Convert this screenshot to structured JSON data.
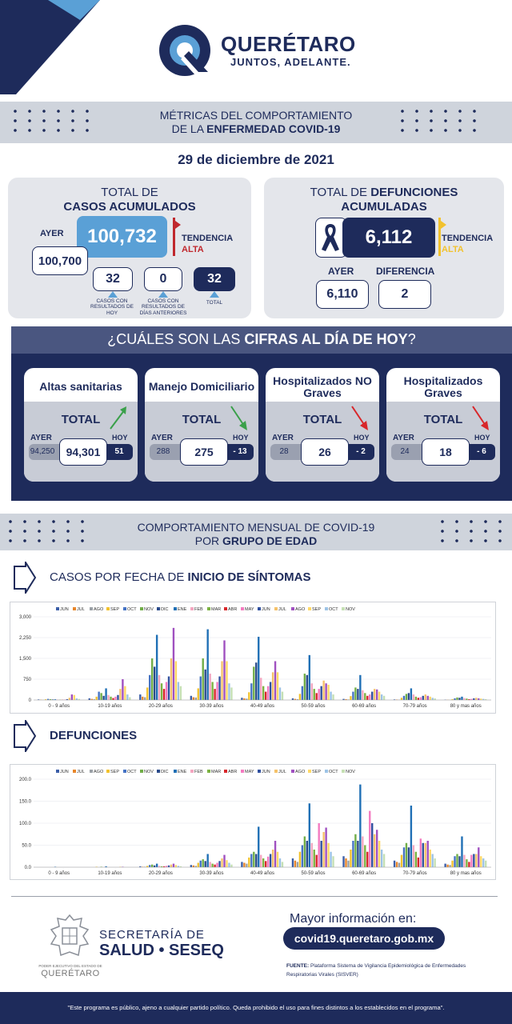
{
  "brand": {
    "name": "QUERÉTARO",
    "slogan": "JUNTOS, ADELANTE."
  },
  "header": {
    "line1": "MÉTRICAS DEL COMPORTAMIENTO",
    "line2_pre": "DE LA ",
    "line2_bold": "ENFERMEDAD COVID-19"
  },
  "date": "29 de diciembre de 2021",
  "casos": {
    "title1": "TOTAL DE",
    "title2": "CASOS ACUMULADOS",
    "ayer_label": "AYER",
    "ayer_value": "100,700",
    "total": "100,732",
    "tendencia_label": "TENDENCIA",
    "tendencia_value": "ALTA",
    "hoy_value": "32",
    "hoy_label": "CASOS CON RESULTADOS DE HOY",
    "anteriores_value": "0",
    "anteriores_label": "CASOS CON RESULTADOS DE DÍAS ANTERIORES",
    "total_value": "32",
    "total_label": "TOTAL"
  },
  "defunciones": {
    "title_pre": "TOTAL DE ",
    "title_bold": "DEFUNCIONES",
    "title2": "ACUMULADAS",
    "total": "6,112",
    "tendencia_label": "TENDENCIA",
    "tendencia_value": "ALTA",
    "ayer_label": "AYER",
    "ayer_value": "6,110",
    "diferencia_label": "DIFERENCIA",
    "diferencia_value": "2"
  },
  "cifras": {
    "title_pre": "¿CUÁLES SON LAS ",
    "title_bold": "CIFRAS AL DÍA DE HOY",
    "title_post": "?",
    "cards": [
      {
        "title": "Altas sanitarias",
        "total_label": "TOTAL",
        "ayer_label": "AYER",
        "hoy_label": "HOY",
        "ayer": "94,250",
        "total": "94,301",
        "hoy": "51",
        "trend": "up"
      },
      {
        "title": "Manejo Domiciliario",
        "total_label": "TOTAL",
        "ayer_label": "AYER",
        "hoy_label": "HOY",
        "ayer": "288",
        "total": "275",
        "hoy": "- 13",
        "trend": "down-green"
      },
      {
        "title": "Hospitalizados NO Graves",
        "total_label": "TOTAL",
        "ayer_label": "AYER",
        "hoy_label": "HOY",
        "ayer": "28",
        "total": "26",
        "hoy": "- 2",
        "trend": "down-red"
      },
      {
        "title": "Hospitalizados Graves",
        "total_label": "TOTAL",
        "ayer_label": "AYER",
        "hoy_label": "HOY",
        "ayer": "24",
        "total": "18",
        "hoy": "- 6",
        "trend": "down-red"
      }
    ]
  },
  "mensual": {
    "line1": "COMPORTAMIENTO MENSUAL DE COVID-19",
    "line2_pre": "POR ",
    "line2_bold": "GRUPO DE EDAD"
  },
  "chart_casos_title": {
    "pre": "CASOS POR FECHA DE ",
    "bold": "INICIO DE SÍNTOMAS"
  },
  "chart_def_title": {
    "bold": "DEFUNCIONES"
  },
  "chart_data": [
    {
      "type": "bar",
      "title": "CASOS POR FECHA DE INICIO DE SÍNTOMAS",
      "categories": [
        "0 - 9 años",
        "10-19 años",
        "20-29 años",
        "30-39 años",
        "40-49 años",
        "50-59 años",
        "60-69 años",
        "70-79 años",
        "80 y mas años"
      ],
      "series_names": [
        "JUN",
        "JUL",
        "AGO",
        "SEP",
        "OCT",
        "NOV",
        "DIC",
        "ENE",
        "FEB",
        "MAR",
        "ABR",
        "MAY",
        "JUN",
        "JUL",
        "AGO",
        "SEP",
        "OCT",
        "NOV"
      ],
      "colors": [
        "#3b5ea8",
        "#e8862a",
        "#9aa0a6",
        "#f2c22e",
        "#4472c4",
        "#70ad47",
        "#2a4a8a",
        "#1f6fb5",
        "#f4a6c0",
        "#7cb342",
        "#d8262a",
        "#f37ac0",
        "#3050a0",
        "#f5c26b",
        "#a050c0",
        "#ffd966",
        "#9dc3e6",
        "#c5e0b4"
      ],
      "values": [
        [
          20,
          10,
          5,
          25,
          40,
          30,
          20,
          25,
          15,
          10,
          8,
          12,
          30,
          80,
          200,
          180,
          60,
          40
        ],
        [
          60,
          40,
          30,
          120,
          300,
          250,
          150,
          420,
          180,
          120,
          70,
          120,
          180,
          400,
          750,
          500,
          200,
          100
        ],
        [
          200,
          120,
          100,
          450,
          900,
          1500,
          1200,
          2350,
          900,
          600,
          400,
          650,
          850,
          1500,
          2600,
          1400,
          650,
          500
        ],
        [
          150,
          100,
          90,
          420,
          850,
          1500,
          1100,
          2550,
          950,
          650,
          400,
          650,
          850,
          1400,
          2150,
          1400,
          600,
          450
        ],
        [
          80,
          60,
          50,
          280,
          600,
          1200,
          1350,
          2280,
          800,
          500,
          300,
          500,
          650,
          1000,
          1400,
          1000,
          450,
          300
        ],
        [
          60,
          40,
          30,
          220,
          500,
          950,
          900,
          1620,
          600,
          400,
          250,
          400,
          500,
          700,
          600,
          550,
          300,
          200
        ],
        [
          40,
          30,
          20,
          140,
          300,
          450,
          400,
          900,
          350,
          250,
          150,
          200,
          300,
          400,
          380,
          300,
          200,
          150
        ],
        [
          20,
          15,
          10,
          80,
          150,
          220,
          250,
          420,
          200,
          120,
          80,
          100,
          150,
          200,
          150,
          120,
          80,
          60
        ],
        [
          10,
          8,
          6,
          30,
          60,
          90,
          80,
          120,
          70,
          50,
          30,
          40,
          60,
          80,
          60,
          50,
          40,
          30
        ]
      ],
      "y_ticks": [
        "0",
        "750",
        "1,500",
        "2,250",
        "3,000"
      ],
      "ylim": [
        0,
        3000
      ]
    },
    {
      "type": "bar",
      "title": "DEFUNCIONES",
      "categories": [
        "0 - 9 años",
        "10-19 años",
        "20-29 años",
        "30-39 años",
        "40-49 años",
        "50-59 años",
        "60-69 años",
        "70-79 años",
        "80 y mas años"
      ],
      "series_names": [
        "JUN",
        "JUL",
        "AGO",
        "SEP",
        "OCT",
        "NOV",
        "DIC",
        "ENE",
        "FEB",
        "MAR",
        "ABR",
        "MAY",
        "JUN",
        "JUL",
        "AGO",
        "SEP",
        "OCT",
        "NOV"
      ],
      "colors": [
        "#3b5ea8",
        "#e8862a",
        "#9aa0a6",
        "#f2c22e",
        "#4472c4",
        "#70ad47",
        "#2a4a8a",
        "#1f6fb5",
        "#f4a6c0",
        "#7cb342",
        "#d8262a",
        "#f37ac0",
        "#3050a0",
        "#f5c26b",
        "#a050c0",
        "#ffd966",
        "#9dc3e6",
        "#c5e0b4"
      ],
      "values": [
        [
          0,
          0,
          0,
          0,
          0,
          0,
          0,
          1,
          0,
          0,
          0,
          0,
          0,
          0,
          0,
          0,
          0,
          0
        ],
        [
          0,
          0,
          0,
          1,
          0,
          1,
          0,
          2,
          0,
          0,
          0,
          0,
          0,
          1,
          1,
          0,
          0,
          0
        ],
        [
          2,
          1,
          1,
          3,
          5,
          6,
          4,
          8,
          3,
          2,
          2,
          3,
          4,
          6,
          8,
          5,
          3,
          2
        ],
        [
          5,
          4,
          3,
          10,
          15,
          18,
          14,
          30,
          12,
          8,
          6,
          10,
          14,
          20,
          28,
          16,
          10,
          6
        ],
        [
          12,
          10,
          8,
          22,
          30,
          35,
          30,
          92,
          28,
          20,
          14,
          24,
          30,
          40,
          60,
          35,
          20,
          12
        ],
        [
          20,
          15,
          12,
          35,
          50,
          70,
          60,
          145,
          55,
          40,
          28,
          100,
          60,
          80,
          90,
          55,
          35,
          25
        ],
        [
          25,
          20,
          15,
          40,
          60,
          75,
          60,
          188,
          70,
          50,
          35,
          128,
          100,
          75,
          85,
          60,
          40,
          30
        ],
        [
          15,
          12,
          10,
          28,
          45,
          55,
          45,
          140,
          50,
          35,
          22,
          65,
          55,
          55,
          60,
          40,
          30,
          20
        ],
        [
          8,
          6,
          5,
          15,
          25,
          30,
          25,
          70,
          28,
          18,
          12,
          28,
          30,
          30,
          45,
          25,
          20,
          15
        ]
      ],
      "y_ticks": [
        "0.0",
        "50.0",
        "100.0",
        "150.0",
        "200.0"
      ],
      "ylim": [
        0,
        200
      ]
    }
  ],
  "footer": {
    "secretaria1": "SECRETARÍA DE",
    "secretaria2": "SALUD • SESEQ",
    "gov_small": "PODER EJECUTIVO DEL ESTADO DE",
    "gov_name": "QUERÉTARO",
    "mayor_info": "Mayor información en:",
    "url": "covid19.queretaro.gob.mx",
    "fuente_label": "FUENTE:",
    "fuente_text": "Plataforma Sistema de Vigilancia Epidemiológica de Enfermedades Respiratorias Virales (SISVER)",
    "disclaimer": "\"Este programa es público, ajeno a cualquier partido político. Queda prohibido el uso para fines distintos a los establecidos en el programa\"."
  },
  "colors": {
    "navy": "#1e2b5b",
    "panel": "#e4e6eb",
    "blue": "#5aa0d6",
    "red": "#c0282e",
    "gold": "#f2c22e"
  }
}
